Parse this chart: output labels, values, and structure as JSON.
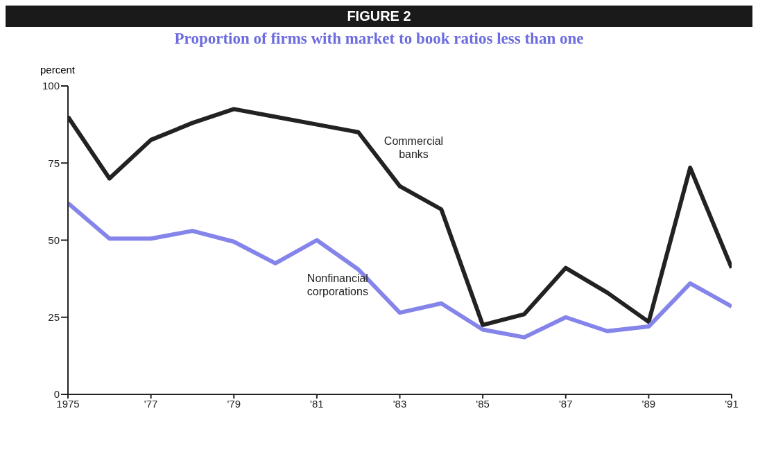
{
  "chart_data": {
    "type": "line",
    "title": "FIGURE 2",
    "subtitle": "Proportion of firms with market to book ratios less than one",
    "ylabel": "percent",
    "x": [
      1975,
      1976,
      1977,
      1978,
      1979,
      1980,
      1981,
      1982,
      1983,
      1984,
      1985,
      1986,
      1987,
      1988,
      1989,
      1990,
      1991
    ],
    "series": [
      {
        "name": "Commercial banks",
        "color": "#222222",
        "values": [
          90,
          70,
          82.5,
          88,
          92.5,
          90,
          87.5,
          85,
          67.5,
          60,
          22.5,
          26,
          41,
          33,
          23.5,
          73.5,
          41
        ]
      },
      {
        "name": "Nonfinancial corporations",
        "color": "#8484ea",
        "values": [
          62,
          50.5,
          50.5,
          53,
          49.5,
          42.5,
          50,
          40.5,
          26.5,
          29.5,
          21,
          18.5,
          25,
          20.5,
          22,
          36,
          28.5
        ]
      }
    ],
    "xlim": [
      1975,
      1991
    ],
    "xticks": [
      1975,
      {
        "value": 1977,
        "label": "'77"
      },
      {
        "value": 1979,
        "label": "'79"
      },
      {
        "value": 1981,
        "label": "'81"
      },
      {
        "value": 1983,
        "label": "'83"
      },
      {
        "value": 1985,
        "label": "'85"
      },
      {
        "value": 1987,
        "label": "'87"
      },
      {
        "value": 1989,
        "label": "'89"
      },
      {
        "value": 1991,
        "label": "'91"
      }
    ],
    "ylim": [
      0,
      100
    ],
    "yticks": [
      0,
      25,
      50,
      75,
      100
    ],
    "grid": false,
    "legend": false,
    "marker": "none",
    "line_style": "solid"
  }
}
